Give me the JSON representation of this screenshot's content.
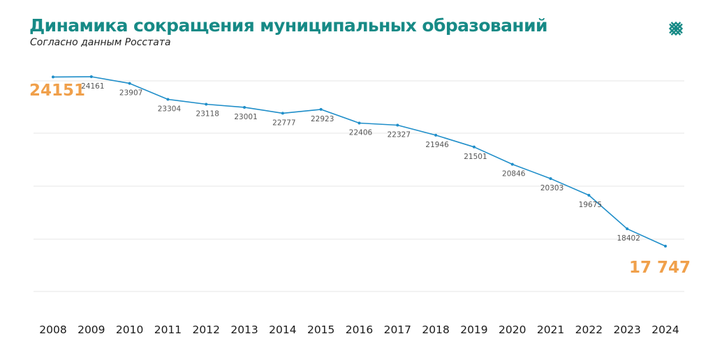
{
  "header": {
    "title": "Динамика сокращения муниципальных образований",
    "subtitle": "Согласно данным Росстата",
    "logo_icon": "diamond-lattice-icon"
  },
  "colors": {
    "title": "#178a86",
    "line": "#1f8ec9",
    "highlight": "#f0a04b",
    "grid": "#e6e6e6"
  },
  "chart_data": {
    "type": "line",
    "title": "Динамика сокращения муниципальных образований",
    "subtitle": "Согласно данным Росстата",
    "xlabel": "",
    "ylabel": "",
    "grid": true,
    "legend": "none",
    "x": [
      "2008",
      "2009",
      "2010",
      "2011",
      "2012",
      "2013",
      "2014",
      "2015",
      "2016",
      "2017",
      "2018",
      "2019",
      "2020",
      "2021",
      "2022",
      "2023",
      "2024"
    ],
    "series": [
      {
        "values": [
          24151,
          24161,
          23907,
          23304,
          23118,
          23001,
          22777,
          22923,
          22406,
          22327,
          21946,
          21501,
          20846,
          20303,
          19675,
          18402,
          17747
        ]
      }
    ],
    "data_labels": [
      "24151",
      "24161",
      "23907",
      "23304",
      "23118",
      "23001",
      "22777",
      "22923",
      "22406",
      "22327",
      "21946",
      "21501",
      "20846",
      "20303",
      "19675",
      "18402",
      "17 747"
    ],
    "highlighted_points": [
      0,
      16
    ]
  }
}
